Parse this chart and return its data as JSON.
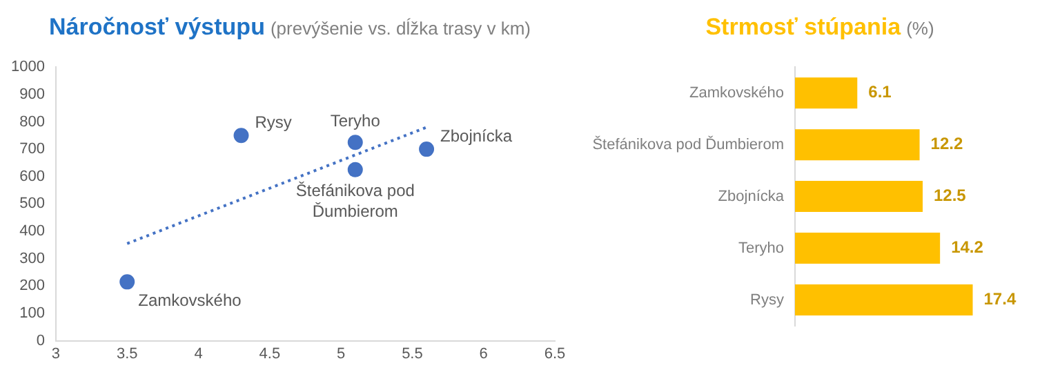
{
  "chart_data": [
    {
      "type": "scatter",
      "title": "Náročnosť výstupu",
      "subtitle": "(prevýšenie vs. dĺžka trasy v km)",
      "series": [
        {
          "color": "#4472c4",
          "x": [
            3.5,
            4.3,
            5.1,
            5.1,
            5.6
          ],
          "values": [
            215,
            750,
            725,
            625,
            700
          ]
        },
        {
          "type": "line",
          "color": "#4472c4",
          "x": [
            3.5,
            5.6
          ],
          "values": [
            355,
            780
          ],
          "line_style": "dotted",
          "marker": "none"
        }
      ],
      "annotations": [
        {
          "text": "Zamkovského",
          "x": 3.5,
          "y": 215
        },
        {
          "text": "Rysy",
          "x": 4.3,
          "y": 750
        },
        {
          "text": "Teryho",
          "x": 5.1,
          "y": 725
        },
        {
          "text": "Štefánikova pod Ďumbierom",
          "x": 5.1,
          "y": 625
        },
        {
          "text": "Zbojnícka",
          "x": 5.6,
          "y": 700
        }
      ],
      "xlim": [
        3,
        6.5
      ],
      "xticks": [
        3,
        3.5,
        4,
        4.5,
        5,
        5.5,
        6,
        6.5
      ],
      "ylim": [
        0,
        1000
      ],
      "yticks": [
        0,
        100,
        200,
        300,
        400,
        500,
        600,
        700,
        800,
        900,
        1000
      ],
      "marker": "circle",
      "grid": false,
      "legend": false
    },
    {
      "type": "bar",
      "orientation": "horizontal",
      "title": "Strmosť stúpania",
      "subtitle": "(%)",
      "categories": [
        "Zamkovského",
        "Štefánikova pod Ďumbierom",
        "Zbojnícka",
        "Teryho",
        "Rysy"
      ],
      "values": [
        6.1,
        12.2,
        12.5,
        14.2,
        17.4
      ],
      "color": "#ffc000",
      "data_labels": true,
      "grid": false,
      "legend": false,
      "tick_labels": "y"
    }
  ]
}
